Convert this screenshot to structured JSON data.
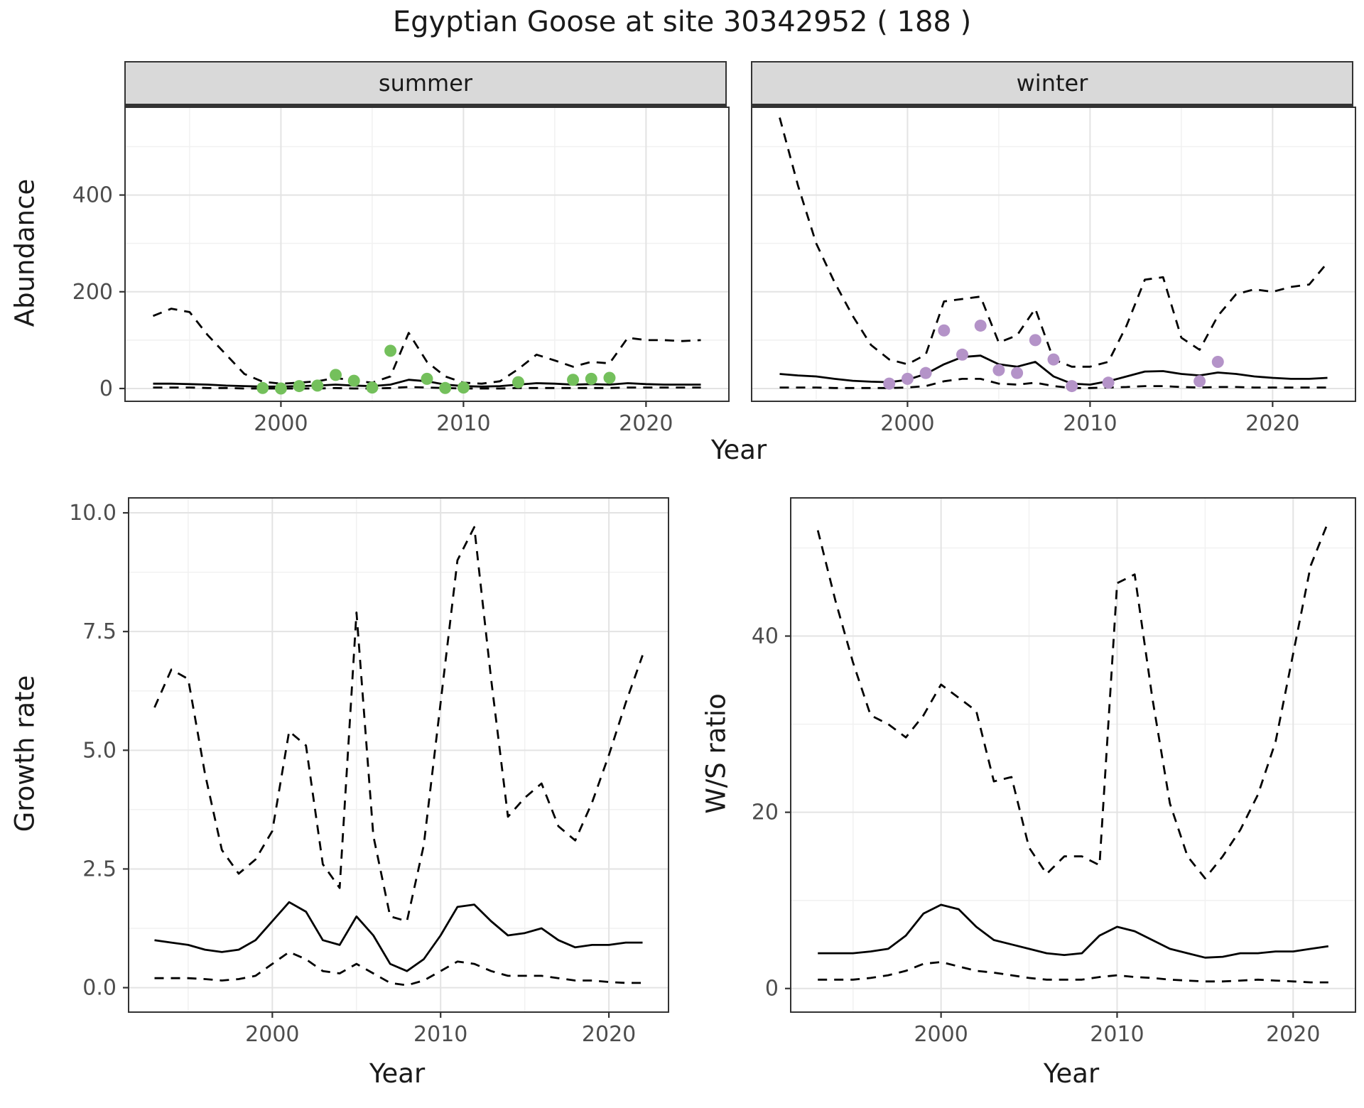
{
  "title": "Egyptian Goose at site 30342952 ( 188 )",
  "colors": {
    "line": "#000000",
    "summer_points": "#74c05c",
    "winter_points": "#b493c8",
    "strip_bg": "#d9d9d9",
    "panel_border": "#333333",
    "grid_major": "#e3e3e3",
    "grid_minor": "#f1f1f1",
    "tick_mark": "#333333",
    "tick_label": "#4d4d4d",
    "text": "#1a1a1a"
  },
  "chart_data": [
    {
      "id": "summer",
      "type": "line",
      "facet_label": "summer",
      "xlabel": "Year",
      "ylabel": "Abundance",
      "x_domain": [
        1991.5,
        2024.5
      ],
      "y_domain": [
        -25,
        580
      ],
      "x_ticks": {
        "values": [
          2000,
          2010,
          2020
        ],
        "labels": [
          "2000",
          "2010",
          "2020"
        ]
      },
      "x_minor": [
        1995,
        2005,
        2015
      ],
      "y_ticks": {
        "values": [
          0,
          200,
          400
        ],
        "labels": [
          "0",
          "200",
          "400"
        ]
      },
      "y_minor": [
        100,
        300,
        500
      ],
      "years": [
        1993,
        1994,
        1995,
        1996,
        1997,
        1998,
        1999,
        2000,
        2001,
        2002,
        2003,
        2004,
        2005,
        2006,
        2007,
        2008,
        2009,
        2010,
        2011,
        2012,
        2013,
        2014,
        2015,
        2016,
        2017,
        2018,
        2019,
        2020,
        2021,
        2022,
        2023
      ],
      "upper": [
        150,
        165,
        158,
        110,
        70,
        30,
        14,
        10,
        12,
        15,
        22,
        16,
        12,
        25,
        115,
        55,
        25,
        12,
        10,
        15,
        40,
        70,
        58,
        45,
        55,
        52,
        105,
        100,
        100,
        98,
        100
      ],
      "median": [
        10,
        10,
        9,
        8,
        6,
        5,
        4,
        4,
        5,
        6,
        8,
        6,
        5,
        8,
        18,
        15,
        8,
        5,
        4,
        5,
        8,
        11,
        10,
        8,
        9,
        8,
        11,
        9,
        8,
        8,
        8
      ],
      "lower": [
        2,
        2,
        2,
        1,
        1,
        0,
        0,
        0,
        0,
        0,
        1,
        0,
        0,
        1,
        3,
        2,
        1,
        0,
        0,
        0,
        1,
        1,
        1,
        1,
        1,
        1,
        2,
        2,
        2,
        2,
        2
      ],
      "points": {
        "color_key": "summer_points",
        "years": [
          1999,
          2000,
          2001,
          2002,
          2003,
          2004,
          2005,
          2006,
          2008,
          2009,
          2010,
          2013,
          2016,
          2017,
          2018
        ],
        "values": [
          1,
          0,
          5,
          6,
          28,
          16,
          2,
          78,
          20,
          1,
          2,
          13,
          18,
          20,
          22
        ]
      }
    },
    {
      "id": "winter",
      "type": "line",
      "facet_label": "winter",
      "xlabel": "Year",
      "ylabel": "Abundance",
      "x_domain": [
        1991.5,
        2024.5
      ],
      "y_domain": [
        -25,
        580
      ],
      "x_ticks": {
        "values": [
          2000,
          2010,
          2020
        ],
        "labels": [
          "2000",
          "2010",
          "2020"
        ]
      },
      "x_minor": [
        1995,
        2005,
        2015
      ],
      "y_ticks": {
        "values": [
          0,
          200,
          400
        ],
        "labels": [
          "0",
          "200",
          "400"
        ]
      },
      "y_minor": [
        100,
        300,
        500
      ],
      "years": [
        1993,
        1994,
        1995,
        1996,
        1997,
        1998,
        1999,
        2000,
        2001,
        2002,
        2003,
        2004,
        2005,
        2006,
        2007,
        2008,
        2009,
        2010,
        2011,
        2012,
        2013,
        2014,
        2015,
        2016,
        2017,
        2018,
        2019,
        2020,
        2021,
        2022,
        2023
      ],
      "upper": [
        560,
        420,
        300,
        220,
        150,
        90,
        60,
        50,
        70,
        180,
        185,
        190,
        95,
        110,
        165,
        60,
        45,
        45,
        55,
        130,
        225,
        230,
        105,
        80,
        150,
        195,
        205,
        200,
        210,
        215,
        260
      ],
      "median": [
        30,
        27,
        25,
        20,
        16,
        14,
        13,
        18,
        30,
        50,
        65,
        68,
        50,
        45,
        55,
        25,
        10,
        8,
        15,
        25,
        35,
        36,
        30,
        27,
        33,
        30,
        25,
        22,
        20,
        20,
        22
      ],
      "lower": [
        2,
        2,
        2,
        1,
        1,
        1,
        1,
        2,
        5,
        15,
        20,
        20,
        10,
        8,
        12,
        5,
        1,
        1,
        2,
        3,
        5,
        5,
        3,
        2,
        3,
        3,
        2,
        2,
        2,
        2,
        2
      ],
      "points": {
        "color_key": "winter_points",
        "years": [
          1999,
          2000,
          2001,
          2002,
          2003,
          2004,
          2005,
          2006,
          2007,
          2008,
          2009,
          2011,
          2016,
          2017
        ],
        "values": [
          10,
          20,
          32,
          120,
          70,
          130,
          38,
          32,
          100,
          60,
          5,
          12,
          15,
          55
        ]
      }
    },
    {
      "id": "growth",
      "type": "line",
      "facet_label": "",
      "xlabel": "Year",
      "ylabel": "Growth rate",
      "x_domain": [
        1991.5,
        2023.5
      ],
      "y_domain": [
        -0.5,
        10.3
      ],
      "x_ticks": {
        "values": [
          2000,
          2010,
          2020
        ],
        "labels": [
          "2000",
          "2010",
          "2020"
        ]
      },
      "x_minor": [
        1995,
        2005,
        2015
      ],
      "y_ticks": {
        "values": [
          0,
          2.5,
          5,
          7.5,
          10
        ],
        "labels": [
          "0.0",
          "2.5",
          "5.0",
          "7.5",
          "10.0"
        ]
      },
      "y_minor": [
        1.25,
        3.75,
        6.25,
        8.75
      ],
      "years": [
        1993,
        1994,
        1995,
        1996,
        1997,
        1998,
        1999,
        2000,
        2001,
        2002,
        2003,
        2004,
        2005,
        2006,
        2007,
        2008,
        2009,
        2010,
        2011,
        2012,
        2013,
        2014,
        2015,
        2016,
        2017,
        2018,
        2019,
        2020,
        2021,
        2022
      ],
      "upper": [
        5.9,
        6.7,
        6.5,
        4.5,
        2.9,
        2.4,
        2.7,
        3.3,
        5.4,
        5.1,
        2.6,
        2.1,
        7.9,
        3.2,
        1.5,
        1.4,
        3.0,
        6.0,
        9.0,
        9.7,
        6.5,
        3.6,
        4.0,
        4.3,
        3.4,
        3.1,
        3.9,
        4.9,
        6.0,
        7.0
      ],
      "median": [
        1.0,
        0.95,
        0.9,
        0.8,
        0.75,
        0.8,
        1.0,
        1.4,
        1.8,
        1.6,
        1.0,
        0.9,
        1.5,
        1.1,
        0.5,
        0.35,
        0.6,
        1.1,
        1.7,
        1.75,
        1.4,
        1.1,
        1.15,
        1.25,
        1.0,
        0.85,
        0.9,
        0.9,
        0.95,
        0.95
      ],
      "lower": [
        0.2,
        0.2,
        0.2,
        0.18,
        0.15,
        0.18,
        0.25,
        0.5,
        0.75,
        0.6,
        0.35,
        0.3,
        0.5,
        0.3,
        0.1,
        0.05,
        0.15,
        0.35,
        0.55,
        0.5,
        0.35,
        0.25,
        0.25,
        0.25,
        0.2,
        0.15,
        0.15,
        0.12,
        0.1,
        0.1
      ],
      "points": null
    },
    {
      "id": "ws",
      "type": "line",
      "facet_label": "",
      "xlabel": "Year",
      "ylabel": "W/S ratio",
      "x_domain": [
        1991.5,
        2023.5
      ],
      "y_domain": [
        -2.6,
        55.6
      ],
      "x_ticks": {
        "values": [
          2000,
          2010,
          2020
        ],
        "labels": [
          "2000",
          "2010",
          "2020"
        ]
      },
      "x_minor": [
        1995,
        2005,
        2015
      ],
      "y_ticks": {
        "values": [
          0,
          20,
          40
        ],
        "labels": [
          "0",
          "20",
          "40"
        ]
      },
      "y_minor": [
        10,
        30,
        50
      ],
      "years": [
        1993,
        1994,
        1995,
        1996,
        1997,
        1998,
        1999,
        2000,
        2001,
        2002,
        2003,
        2004,
        2005,
        2006,
        2007,
        2008,
        2009,
        2010,
        2011,
        2012,
        2013,
        2014,
        2015,
        2016,
        2017,
        2018,
        2019,
        2020,
        2021,
        2022
      ],
      "upper": [
        52,
        44,
        37,
        31,
        30,
        28.5,
        31,
        34.5,
        33,
        31.5,
        23.5,
        24,
        16,
        13,
        15,
        15,
        14,
        46,
        47,
        33,
        21,
        15,
        12.5,
        15,
        18,
        22,
        28,
        38,
        48,
        53
      ],
      "median": [
        4,
        4,
        4,
        4.2,
        4.5,
        6,
        8.5,
        9.5,
        9,
        7,
        5.5,
        5,
        4.5,
        4,
        3.8,
        4,
        6,
        7,
        6.5,
        5.5,
        4.5,
        4,
        3.5,
        3.6,
        4,
        4,
        4.2,
        4.2,
        4.5,
        4.8
      ],
      "lower": [
        1,
        1,
        1,
        1.2,
        1.5,
        2,
        2.8,
        3,
        2.5,
        2,
        1.8,
        1.5,
        1.2,
        1,
        1,
        1,
        1.3,
        1.5,
        1.3,
        1.2,
        1,
        0.9,
        0.8,
        0.8,
        0.9,
        1,
        0.9,
        0.8,
        0.7,
        0.7
      ],
      "points": null
    }
  ]
}
